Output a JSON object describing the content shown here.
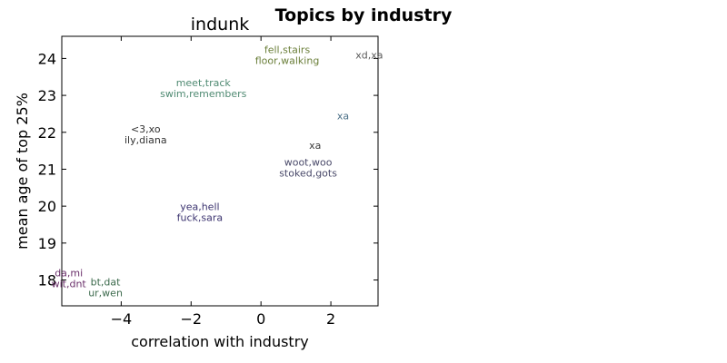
{
  "figure": {
    "suptitle": "Topics by industry"
  },
  "chart_data": {
    "type": "scatter",
    "title": "indunk",
    "xlabel": "correlation with industry",
    "ylabel": "mean age of top 25%",
    "xlim": [
      -5.7,
      3.35
    ],
    "ylim": [
      17.3,
      24.6
    ],
    "xticks": [
      -4,
      -2,
      0,
      2
    ],
    "yticks": [
      18,
      19,
      20,
      21,
      22,
      23,
      24
    ],
    "xtick_labels": [
      "−4",
      "−2",
      "0",
      "2"
    ],
    "ytick_labels": [
      "18",
      "19",
      "20",
      "21",
      "22",
      "23",
      "24"
    ],
    "grid": false,
    "points": [
      {
        "x": 0.75,
        "y": 24.1,
        "lines": [
          "fell,stairs",
          "floor,walking"
        ],
        "color": "#6b7f3a"
      },
      {
        "x": 3.1,
        "y": 24.1,
        "lines": [
          "xd,xa"
        ],
        "color": "#5a5a5a"
      },
      {
        "x": -1.65,
        "y": 23.2,
        "lines": [
          "meet,track",
          "swim,remembers"
        ],
        "color": "#4f8a72"
      },
      {
        "x": 2.35,
        "y": 22.45,
        "lines": [
          "xa"
        ],
        "color": "#4a6f86"
      },
      {
        "x": -3.3,
        "y": 21.95,
        "lines": [
          "<3,xo",
          "ily,diana"
        ],
        "color": "#333333"
      },
      {
        "x": 1.55,
        "y": 21.65,
        "lines": [
          "xa"
        ],
        "color": "#3a3a3a"
      },
      {
        "x": 1.35,
        "y": 21.05,
        "lines": [
          "woot,woo",
          "stoked,gots"
        ],
        "color": "#4a4a6a"
      },
      {
        "x": -1.75,
        "y": 19.85,
        "lines": [
          "yea,hell",
          "fuck,sara"
        ],
        "color": "#3c3470"
      },
      {
        "x": -5.5,
        "y": 18.05,
        "lines": [
          "da,mi",
          "wit,dnt"
        ],
        "color": "#6a2f6a"
      },
      {
        "x": -4.45,
        "y": 17.8,
        "lines": [
          "bt,dat",
          "ur,wen"
        ],
        "color": "#3d6b4d"
      }
    ]
  }
}
